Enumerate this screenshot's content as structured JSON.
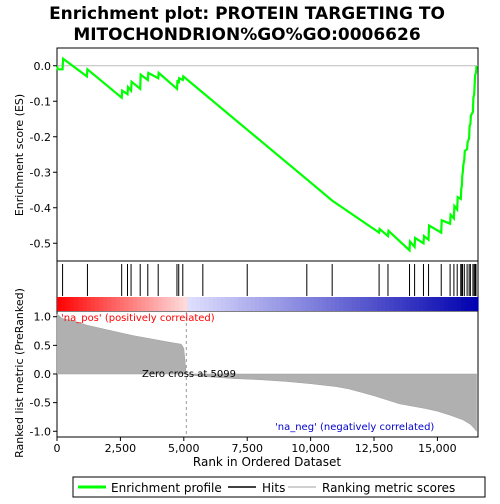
{
  "title_line1": "Enrichment plot: PROTEIN TARGETING TO",
  "title_line2": "MITOCHONDRION%GO%GO:0006626",
  "chart_data": {
    "type": "line",
    "n_genes": 16600,
    "xlabel": "Rank in Ordered Dataset",
    "x_ticks": [
      0,
      2500,
      5000,
      7500,
      10000,
      12500,
      15000
    ],
    "x_tick_labels": [
      "0",
      "2,500",
      "5,000",
      "7,500",
      "10,000",
      "12,500",
      "15,000"
    ],
    "es_panel": {
      "ylabel": "Enrichment score (ES)",
      "ylim": [
        -0.55,
        0.05
      ],
      "y_ticks": [
        0.0,
        -0.1,
        -0.2,
        -0.3,
        -0.4,
        -0.5
      ],
      "y_tick_labels": [
        "0.0",
        "-0.1",
        "-0.2",
        "-0.3",
        "-0.4",
        "-0.5"
      ],
      "series_color": "#00ff00",
      "points": [
        [
          0,
          0.0
        ],
        [
          30,
          -0.01
        ],
        [
          220,
          -0.01
        ],
        [
          240,
          0.02
        ],
        [
          1180,
          -0.03
        ],
        [
          1200,
          -0.01
        ],
        [
          2550,
          -0.09
        ],
        [
          2570,
          -0.07
        ],
        [
          2780,
          -0.08
        ],
        [
          2800,
          -0.06
        ],
        [
          2920,
          -0.07
        ],
        [
          2940,
          -0.045
        ],
        [
          3280,
          -0.065
        ],
        [
          3300,
          -0.025
        ],
        [
          3580,
          -0.04
        ],
        [
          3600,
          -0.02
        ],
        [
          3990,
          -0.035
        ],
        [
          4010,
          -0.02
        ],
        [
          4730,
          -0.065
        ],
        [
          4750,
          -0.04
        ],
        [
          4800,
          -0.05
        ],
        [
          4820,
          -0.035
        ],
        [
          4960,
          -0.04
        ],
        [
          4980,
          -0.03
        ],
        [
          7500,
          -0.18
        ],
        [
          9850,
          -0.32
        ],
        [
          10850,
          -0.38
        ],
        [
          12700,
          -0.47
        ],
        [
          12720,
          -0.46
        ],
        [
          13050,
          -0.48
        ],
        [
          13070,
          -0.465
        ],
        [
          13900,
          -0.52
        ],
        [
          13920,
          -0.495
        ],
        [
          14100,
          -0.51
        ],
        [
          14120,
          -0.485
        ],
        [
          14450,
          -0.5
        ],
        [
          14470,
          -0.48
        ],
        [
          14650,
          -0.49
        ],
        [
          14670,
          -0.45
        ],
        [
          15150,
          -0.47
        ],
        [
          15170,
          -0.435
        ],
        [
          15500,
          -0.445
        ],
        [
          15520,
          -0.42
        ],
        [
          15650,
          -0.43
        ],
        [
          15670,
          -0.395
        ],
        [
          15780,
          -0.405
        ],
        [
          15800,
          -0.37
        ],
        [
          15920,
          -0.375
        ],
        [
          15940,
          -0.345
        ],
        [
          15960,
          -0.34
        ],
        [
          15980,
          -0.31
        ],
        [
          16000,
          -0.3
        ],
        [
          16020,
          -0.28
        ],
        [
          16060,
          -0.265
        ],
        [
          16080,
          -0.24
        ],
        [
          16170,
          -0.235
        ],
        [
          16190,
          -0.215
        ],
        [
          16250,
          -0.205
        ],
        [
          16270,
          -0.17
        ],
        [
          16300,
          -0.165
        ],
        [
          16320,
          -0.14
        ],
        [
          16400,
          -0.13
        ],
        [
          16420,
          -0.09
        ],
        [
          16450,
          -0.08
        ],
        [
          16470,
          -0.05
        ],
        [
          16490,
          -0.025
        ],
        [
          16520,
          -0.02
        ],
        [
          16540,
          0.0
        ]
      ]
    },
    "hits": [
      220,
      1200,
      2550,
      2780,
      2920,
      3280,
      3580,
      3990,
      4730,
      4800,
      4960,
      5750,
      7500,
      9850,
      10850,
      12700,
      13050,
      13900,
      14100,
      14450,
      14650,
      15150,
      15500,
      15650,
      15780,
      15920,
      15960,
      15990,
      16060,
      16170,
      16250,
      16300,
      16400,
      16450,
      16490,
      16520
    ],
    "ranking_panel": {
      "ylabel": "Ranked list metric (PreRanked)",
      "ylim": [
        -1.1,
        1.1
      ],
      "y_ticks": [
        1.0,
        0.5,
        0.0,
        -0.5,
        -1.0
      ],
      "y_tick_labels": [
        "1.0",
        "0.5",
        "0.0",
        "-0.5",
        "-1.0"
      ],
      "zero_cross_label": "Zero cross at 5099",
      "zero_cross": 5099,
      "pos_label": "'na_pos' (positively correlated)",
      "neg_label": "'na_neg' (negatively correlated)",
      "metric_points": [
        [
          0,
          1.05
        ],
        [
          200,
          0.97
        ],
        [
          700,
          0.92
        ],
        [
          1200,
          0.85
        ],
        [
          2000,
          0.77
        ],
        [
          2500,
          0.72
        ],
        [
          3000,
          0.67
        ],
        [
          3500,
          0.63
        ],
        [
          4000,
          0.59
        ],
        [
          4500,
          0.55
        ],
        [
          4900,
          0.52
        ],
        [
          5000,
          0.45
        ],
        [
          5099,
          0.0
        ],
        [
          5200,
          -0.02
        ],
        [
          6000,
          -0.05
        ],
        [
          7000,
          -0.08
        ],
        [
          8000,
          -0.1
        ],
        [
          9000,
          -0.13
        ],
        [
          10000,
          -0.17
        ],
        [
          11000,
          -0.22
        ],
        [
          11500,
          -0.26
        ],
        [
          12000,
          -0.32
        ],
        [
          12500,
          -0.38
        ],
        [
          13000,
          -0.45
        ],
        [
          13500,
          -0.52
        ],
        [
          14000,
          -0.56
        ],
        [
          14500,
          -0.6
        ],
        [
          15000,
          -0.65
        ],
        [
          15500,
          -0.72
        ],
        [
          16000,
          -0.8
        ],
        [
          16300,
          -0.88
        ],
        [
          16450,
          -0.95
        ],
        [
          16540,
          -1.0
        ]
      ]
    },
    "legend": {
      "items": [
        "Enrichment profile",
        "Hits",
        "Ranking metric scores"
      ],
      "colors": [
        "#00ff00",
        "#000000",
        "#c0c0c0"
      ]
    }
  }
}
